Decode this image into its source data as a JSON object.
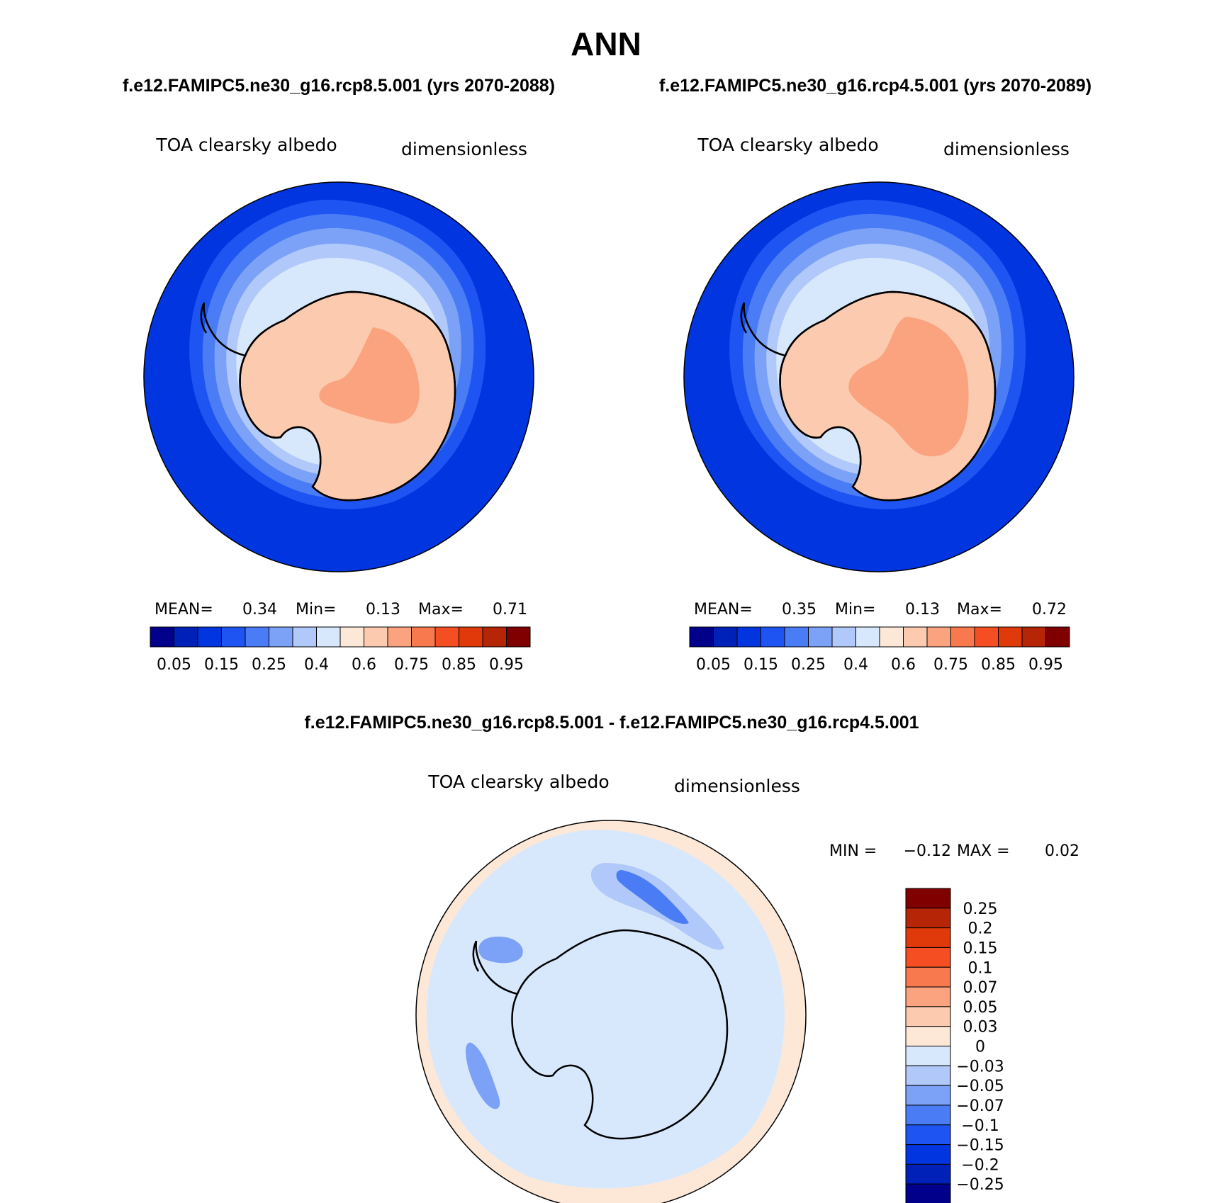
{
  "chart_data": {
    "type": "heatmap",
    "title": "ANN",
    "panels": [
      {
        "id": "rcp85",
        "case_title": "f.e12.FAMIPC5.ne30_g16.rcp8.5.001 (yrs 2070-2088)",
        "variable": "TOA clearsky albedo",
        "units": "dimensionless",
        "stats": {
          "mean_label": "MEAN=",
          "mean": "0.34",
          "min_label": "Min=",
          "min": "0.13",
          "max_label": "Max=",
          "max": "0.71"
        }
      },
      {
        "id": "rcp45",
        "case_title": "f.e12.FAMIPC5.ne30_g16.rcp4.5.001 (yrs 2070-2089)",
        "variable": "TOA clearsky albedo",
        "units": "dimensionless",
        "stats": {
          "mean_label": "MEAN=",
          "mean": "0.35",
          "min_label": "Min=",
          "min": "0.13",
          "max_label": "Max=",
          "max": "0.72"
        }
      },
      {
        "id": "diff",
        "case_title": "f.e12.FAMIPC5.ne30_g16.rcp8.5.001 - f.e12.FAMIPC5.ne30_g16.rcp4.5.001",
        "variable": "TOA clearsky albedo",
        "units": "dimensionless",
        "stats": {
          "min_label": "MIN =",
          "min": "−0.12",
          "max_label": "MAX =",
          "max": "0.02"
        }
      }
    ],
    "colorbar_main": {
      "labels": [
        "0.05",
        "0.15",
        "0.25",
        "0.4",
        "0.6",
        "0.75",
        "0.85",
        "0.95"
      ],
      "colors": [
        "#00008b",
        "#0021b8",
        "#0035e0",
        "#1e55f2",
        "#4a7df5",
        "#7ca2f7",
        "#b0c8fa",
        "#d8e8fc",
        "#fde8d8",
        "#fccaaf",
        "#fba37f",
        "#f8794d",
        "#f44e22",
        "#e03a0b",
        "#b52506",
        "#800000"
      ]
    },
    "colorbar_diff": {
      "labels": [
        "0.25",
        "0.2",
        "0.15",
        "0.1",
        "0.07",
        "0.05",
        "0.03",
        "0",
        "−0.03",
        "−0.05",
        "−0.07",
        "−0.1",
        "−0.15",
        "−0.2",
        "−0.25"
      ],
      "colors": [
        "#800000",
        "#b52506",
        "#e03a0b",
        "#f44e22",
        "#f8794d",
        "#fba37f",
        "#fccaaf",
        "#fde8d8",
        "#d8e8fc",
        "#b0c8fa",
        "#7ca2f7",
        "#4a7df5",
        "#1e55f2",
        "#0035e0",
        "#0021b8",
        "#00008b"
      ]
    }
  }
}
